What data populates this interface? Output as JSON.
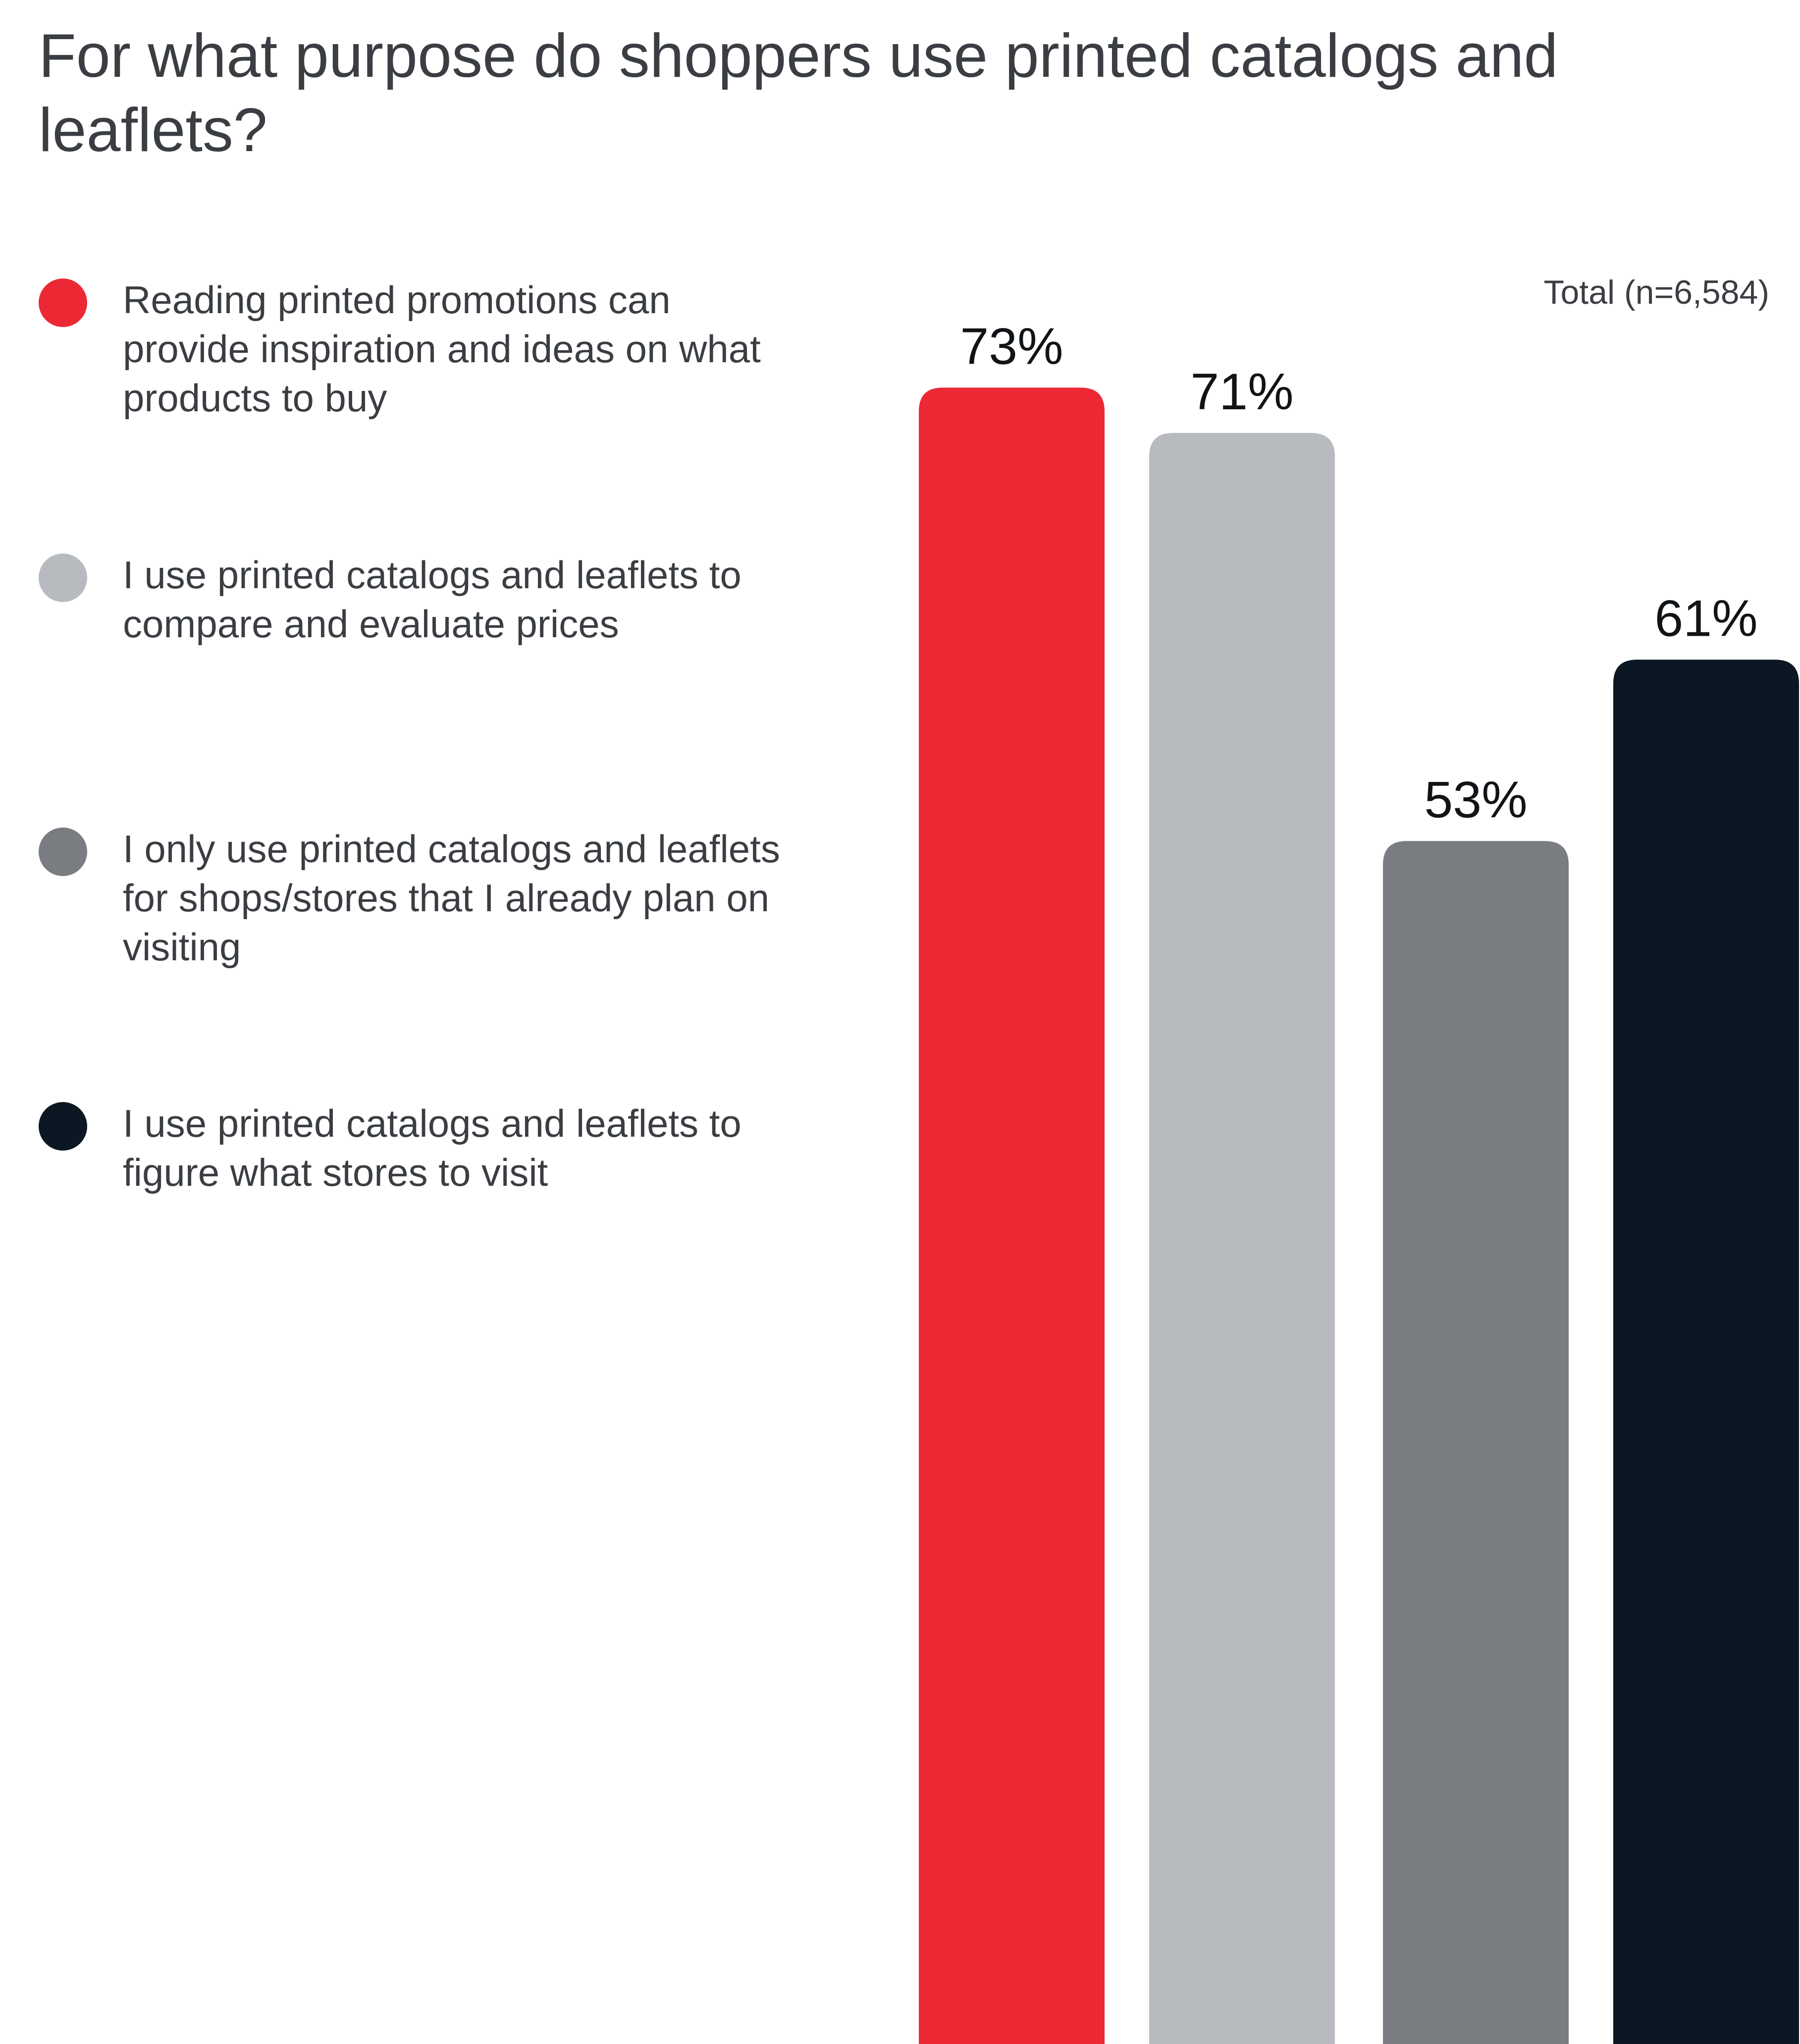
{
  "title": "For what purpose do shoppers use printed catalogs and leaflets?",
  "sample_note": "Total (n=6,584)",
  "colors": {
    "red": "#ec2835",
    "light_gray": "#b7bbbf",
    "dark_gray": "#797c81",
    "navy": "#0b1722",
    "text": "#3a3e43"
  },
  "legend": {
    "items": [
      {
        "label": "Reading printed promotions can provide inspiration and ideas on what products to buy",
        "color": "#ec2835"
      },
      {
        "label": "I use printed catalogs and leaflets to compare and evaluate prices",
        "color": "#b7bbbf"
      },
      {
        "label": "I only use printed catalogs and leaflets for shops/stores that I already plan on visiting",
        "color": "#797c81"
      },
      {
        "label": "I use printed catalogs and leaflets to figure what stores to visit",
        "color": "#0b1722"
      }
    ]
  },
  "chart_data": {
    "type": "bar",
    "title": "For what purpose do shoppers use printed catalogs and leaflets?",
    "subtitle": "Total (n=6,584)",
    "categories": [
      "Reading printed promotions can provide inspiration and ideas on what products to buy",
      "I use printed catalogs and leaflets to compare and evaluate prices",
      "I only use printed catalogs and leaflets for shops/stores that I already plan on visiting",
      "I use printed catalogs and leaflets to figure what stores to visit"
    ],
    "values": [
      73,
      71,
      53,
      61
    ],
    "value_labels": [
      "73%",
      "71%",
      "53%",
      "61%"
    ],
    "colors": [
      "#ec2835",
      "#b7bbbf",
      "#797c81",
      "#0b1722"
    ],
    "xlabel": "",
    "ylabel": "",
    "ylim": [
      0,
      100
    ],
    "unit": "%",
    "grid": false,
    "legend_position": "left"
  }
}
